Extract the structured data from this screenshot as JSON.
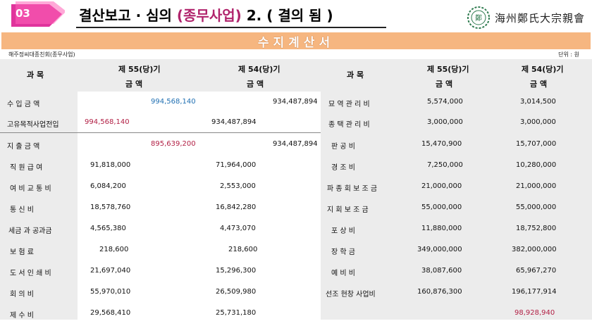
{
  "header": {
    "badge": "03",
    "title_prefix": "결산보고 · 심의 ",
    "title_accent": "(종무사업)",
    "title_suffix": " 2. ( 결의 됨 )",
    "org_name": "海州鄭氏大宗親會",
    "seal_text": "鄭"
  },
  "banner": {
    "text": "수지계산서"
  },
  "meta": {
    "org": "해주정씨대종친회(종무사업)",
    "unit": "단위 : 원"
  },
  "table": {
    "col_subject": "과 목",
    "col_55": "제 55(당)기",
    "col_54": "제 54(당)기",
    "col_amount": "금 액",
    "left_rows": [
      {
        "label": "수 입 금 액",
        "v55": "994,568,140",
        "v54": "934,487,894"
      },
      {
        "label": "고유목적사업전입",
        "v55": "994,568,140",
        "v54": "934,487,894"
      },
      {
        "label": "지 출 금 액",
        "v55": "895,639,200",
        "v54": "934,487,894"
      },
      {
        "label": "직 원 급 여",
        "v55": "91,818,000",
        "v54": "71,964,000"
      },
      {
        "label": "여 비 교 통 비",
        "v55": "6,084,200",
        "v54": "2,553,000"
      },
      {
        "label": "통 신 비",
        "v55": "18,578,760",
        "v54": "16,842,280"
      },
      {
        "label": "세금 과 공과금",
        "v55": "4,565,380",
        "v54": "4,473,070"
      },
      {
        "label": "보 험 료",
        "v55": "218,600",
        "v54": "218,600"
      },
      {
        "label": "도 서 인 쇄 비",
        "v55": "21,697,040",
        "v54": "15,296,300"
      },
      {
        "label": "회 의 비",
        "v55": "55,970,010",
        "v54": "26,509,980"
      },
      {
        "label": "제 수 비",
        "v55": "29,568,410",
        "v54": "25,731,180"
      }
    ],
    "right_rows": [
      {
        "label": "묘 역 관 리 비",
        "v55": "5,574,000",
        "v54": "3,014,500"
      },
      {
        "label": "종 택 관 리 비",
        "v55": "3,000,000",
        "v54": "3,000,000"
      },
      {
        "label": "판 공 비",
        "v55": "15,470,900",
        "v54": "15,707,000"
      },
      {
        "label": "경 조 비",
        "v55": "7,250,000",
        "v54": "10,280,000"
      },
      {
        "label": "파 종 회 보 조 금",
        "v55": "21,000,000",
        "v54": "21,000,000"
      },
      {
        "label": "지 회 보 조 금",
        "v55": "55,000,000",
        "v54": "55,000,000"
      },
      {
        "label": "포 상 비",
        "v55": "11,880,000",
        "v54": "18,752,800"
      },
      {
        "label": "장 학 금",
        "v55": "349,000,000",
        "v54": "382,000,000"
      },
      {
        "label": "예 비 비",
        "v55": "38,087,600",
        "v54": "65,967,270"
      },
      {
        "label": "선조 현창 사업비",
        "v55": "160,876,300",
        "v54": "196,177,914"
      }
    ],
    "final_value": "98,928,940"
  },
  "colors": {
    "banner": "#f6b680",
    "badge": "#e0349c",
    "accent": "#b0246c",
    "blue": "#1f6fb2",
    "red": "#b22045",
    "grey": "#ececec"
  }
}
